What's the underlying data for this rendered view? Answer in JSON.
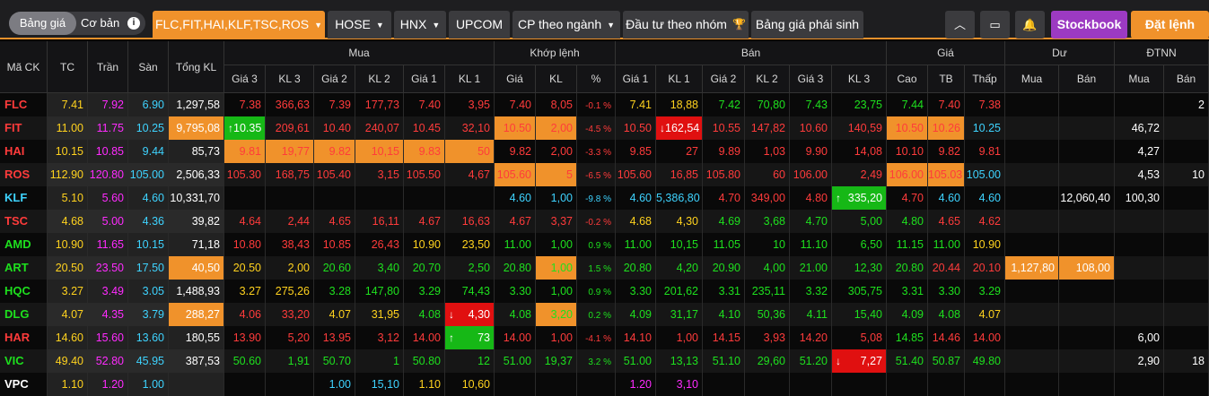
{
  "topbar": {
    "segment": {
      "active": "Bảng giá",
      "inactive": "Cơ bản"
    },
    "watchlist": "FLC,FIT,HAI,KLF,TSC,ROS",
    "tabs": [
      "HOSE",
      "HNX",
      "UPCOM",
      "CP theo ngành",
      "Đầu tư theo nhóm",
      "Bảng giá phái sinh"
    ],
    "stockbook": "Stockbook",
    "order": "Đặt lệnh"
  },
  "headers": {
    "mack": "Mã CK",
    "tc": "TC",
    "tran": "Trần",
    "san": "Sàn",
    "tongkl": "Tổng KL",
    "groups": {
      "mua": "Mua",
      "khop": "Khớp lệnh",
      "ban": "Bán",
      "gia": "Giá",
      "du": "Dư",
      "dtnn": "ĐTNN"
    },
    "buy": [
      "Giá 3",
      "KL 3",
      "Giá 2",
      "KL 2",
      "Giá 1",
      "KL 1"
    ],
    "match": [
      "Giá",
      "KL",
      "%"
    ],
    "sell": [
      "Giá 1",
      "KL 1",
      "Giá 2",
      "KL 2",
      "Giá 3",
      "KL 3"
    ],
    "price": [
      "Cao",
      "TB",
      "Thấp"
    ],
    "du": [
      "Mua",
      "Bán"
    ],
    "dtnn": [
      "Mua",
      "Bán"
    ]
  },
  "colors": {
    "up": "#1ee01e",
    "down": "#ff3b3b",
    "ceil": "#ff2bff",
    "floor": "#3ed3ff",
    "ref": "#ffd21e",
    "orange": "#f0922b",
    "greenCell": "#16b816",
    "redCell": "#e01010"
  },
  "rows": [
    [
      "FLC",
      "7.41",
      "7.92",
      "6.90",
      "1,297,58",
      "7.38",
      "366,63",
      "7.39",
      "177,73",
      "7.40",
      "3,95",
      "7.40",
      "8,05",
      "-0.1 %",
      "7.41",
      "18,88",
      "7.42",
      "70,80",
      "7.43",
      "23,75",
      "7.44",
      "7.40",
      "7.38",
      "",
      "",
      "",
      "2"
    ],
    [
      "FIT",
      "11.00",
      "11.75",
      "10.25",
      "9,795,08",
      "10.35",
      "209,61",
      "10.40",
      "240,07",
      "10.45",
      "32,10",
      "10.50",
      "2,00",
      "-4.5 %",
      "10.50",
      "162,54",
      "10.55",
      "147,82",
      "10.60",
      "140,59",
      "10.50",
      "10.26",
      "10.25",
      "",
      "",
      "46,72",
      ""
    ],
    [
      "HAI",
      "10.15",
      "10.85",
      "9.44",
      "85,73",
      "9.81",
      "19,77",
      "9.82",
      "10,15",
      "9.83",
      "50",
      "9.82",
      "2,00",
      "-3.3 %",
      "9.85",
      "27",
      "9.89",
      "1,03",
      "9.90",
      "14,08",
      "10.10",
      "9.82",
      "9.81",
      "",
      "",
      "4,27",
      ""
    ],
    [
      "ROS",
      "112.90",
      "120.80",
      "105.00",
      "2,506,33",
      "105.30",
      "168,75",
      "105.40",
      "3,15",
      "105.50",
      "4,67",
      "105.60",
      "5",
      "-6.5 %",
      "105.60",
      "16,85",
      "105.80",
      "60",
      "106.00",
      "2,49",
      "106.00",
      "105.03",
      "105.00",
      "",
      "",
      "4,53",
      "10"
    ],
    [
      "KLF",
      "5.10",
      "5.60",
      "4.60",
      "10,331,70",
      "",
      "",
      "",
      "",
      "",
      "",
      "4.60",
      "1,00",
      "-9.8 %",
      "4.60",
      "5,386,80",
      "4.70",
      "349,00",
      "4.80",
      "335,20",
      "4.70",
      "4.60",
      "4.60",
      "",
      "12,060,40",
      "100,30",
      ""
    ],
    [
      "TSC",
      "4.68",
      "5.00",
      "4.36",
      "39,82",
      "4.64",
      "2,44",
      "4.65",
      "16,11",
      "4.67",
      "16,63",
      "4.67",
      "3,37",
      "-0.2 %",
      "4.68",
      "4,30",
      "4.69",
      "3,68",
      "4.70",
      "5,00",
      "4.80",
      "4.65",
      "4.62",
      "",
      "",
      "",
      ""
    ],
    [
      "AMD",
      "10.90",
      "11.65",
      "10.15",
      "71,18",
      "10.80",
      "38,43",
      "10.85",
      "26,43",
      "10.90",
      "23,50",
      "11.00",
      "1,00",
      "0.9 %",
      "11.00",
      "10,15",
      "11.05",
      "10",
      "11.10",
      "6,50",
      "11.15",
      "11.00",
      "10.90",
      "",
      "",
      "",
      ""
    ],
    [
      "ART",
      "20.50",
      "23.50",
      "17.50",
      "40,50",
      "20.50",
      "2,00",
      "20.60",
      "3,40",
      "20.70",
      "2,50",
      "20.80",
      "1,00",
      "1.5 %",
      "20.80",
      "4,20",
      "20.90",
      "4,00",
      "21.00",
      "12,30",
      "20.80",
      "20.44",
      "20.10",
      "1,127,80",
      "108,00",
      "",
      ""
    ],
    [
      "HQC",
      "3.27",
      "3.49",
      "3.05",
      "1,488,93",
      "3.27",
      "275,26",
      "3.28",
      "147,80",
      "3.29",
      "74,43",
      "3.30",
      "1,00",
      "0.9 %",
      "3.30",
      "201,62",
      "3.31",
      "235,11",
      "3.32",
      "305,75",
      "3.31",
      "3.30",
      "3.29",
      "",
      "",
      "",
      ""
    ],
    [
      "DLG",
      "4.07",
      "4.35",
      "3.79",
      "288,27",
      "4.06",
      "33,20",
      "4.07",
      "31,95",
      "4.08",
      "4,30",
      "4.08",
      "3,20",
      "0.2 %",
      "4.09",
      "31,17",
      "4.10",
      "50,36",
      "4.11",
      "15,40",
      "4.09",
      "4.08",
      "4.07",
      "",
      "",
      "",
      ""
    ],
    [
      "HAR",
      "14.60",
      "15.60",
      "13.60",
      "180,55",
      "13.90",
      "5,20",
      "13.95",
      "3,12",
      "14.00",
      "73",
      "14.00",
      "1,00",
      "-4.1 %",
      "14.10",
      "1,00",
      "14.15",
      "3,93",
      "14.20",
      "5,08",
      "14.85",
      "14.46",
      "14.00",
      "",
      "",
      "6,00",
      ""
    ],
    [
      "VIC",
      "49.40",
      "52.80",
      "45.95",
      "387,53",
      "50.60",
      "1,91",
      "50.70",
      "1",
      "50.80",
      "12",
      "51.00",
      "19,37",
      "3.2 %",
      "51.00",
      "13,13",
      "51.10",
      "29,60",
      "51.20",
      "7,27",
      "51.40",
      "50.87",
      "49.80",
      "",
      "",
      "2,90",
      "18"
    ],
    [
      "VPC",
      "1.10",
      "1.20",
      "1.00",
      "",
      "",
      "",
      "1.00",
      "15,10",
      "1.10",
      "10,60",
      "",
      "",
      "",
      "1.20",
      "3,10",
      "",
      "",
      "",
      "",
      "",
      "",
      "",
      "",
      "",
      "",
      ""
    ]
  ]
}
